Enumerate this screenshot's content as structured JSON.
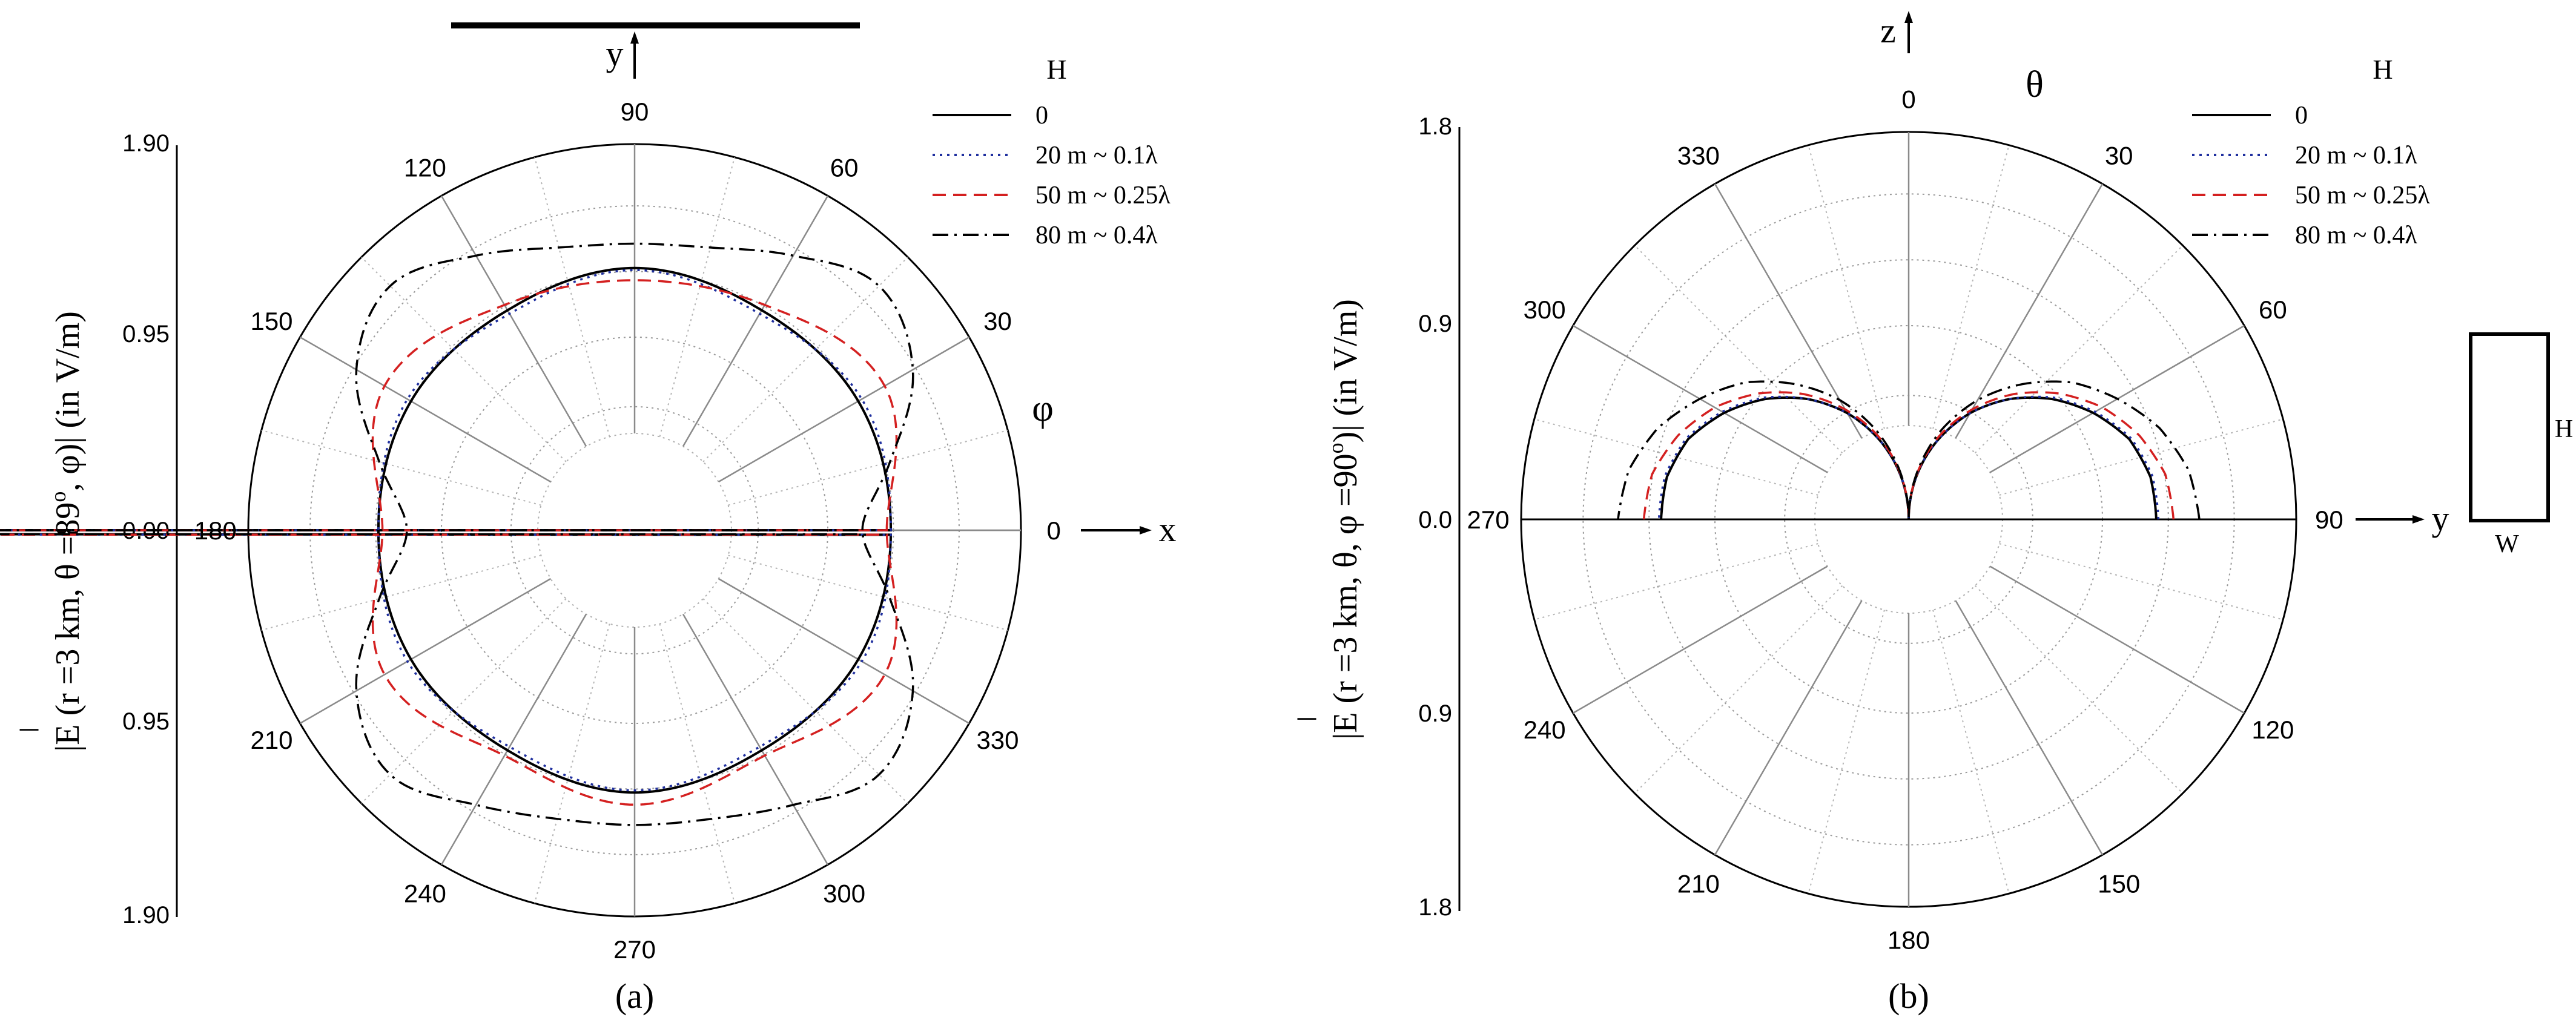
{
  "figure": {
    "caption_a": "(a)",
    "caption_b": "(b)"
  },
  "legend": {
    "title": "H",
    "entries": [
      {
        "label": "0",
        "color": "#000000",
        "dash": "solid"
      },
      {
        "label": "20 m ~ 0.1λ",
        "color": "#1f2f9f",
        "dash": "dot"
      },
      {
        "label": "50 m ~ 0.25λ",
        "color": "#d42020",
        "dash": "dash"
      },
      {
        "label": "80 m ~ 0.4λ",
        "color": "#000000",
        "dash": "dashdot"
      }
    ]
  },
  "chart_data": [
    {
      "type": "polar-line",
      "panel": "a",
      "ylabel_parts": [
        "|E (r =3 km, θ =89",
        "o",
        ", φ)| (in V/m)"
      ],
      "ylabel_bar": "¯",
      "radial_ticks": [
        "1.90",
        "0.95",
        "0.00",
        "0.95",
        "1.90"
      ],
      "radial_range": [
        0,
        1.9
      ],
      "angle_ticks": [
        "0",
        "30",
        "60",
        "90",
        "120",
        "150",
        "180",
        "210",
        "240",
        "270",
        "300",
        "330"
      ],
      "angle_zero": "right",
      "angle_direction": "counterclockwise",
      "angle_label": "φ",
      "axis_x": "x",
      "axis_y": "y",
      "series": [
        {
          "name": "0",
          "x_deg": [
            0,
            30,
            60,
            90,
            120,
            150,
            180,
            210,
            240,
            270,
            300,
            330
          ],
          "r": [
            1.26,
            1.27,
            1.25,
            1.29,
            1.25,
            1.27,
            1.26,
            1.27,
            1.25,
            1.29,
            1.25,
            1.27
          ]
        },
        {
          "name": "20 m ~ 0.1λ",
          "x_deg": [
            0,
            30,
            60,
            90,
            120,
            150,
            180,
            210,
            240,
            270,
            300,
            330
          ],
          "r": [
            1.26,
            1.29,
            1.23,
            1.28,
            1.23,
            1.29,
            1.26,
            1.29,
            1.23,
            1.28,
            1.23,
            1.29
          ]
        },
        {
          "name": "50 m ~ 0.25λ",
          "x_deg": [
            0,
            30,
            60,
            90,
            120,
            150,
            180,
            210,
            240,
            270,
            300,
            330
          ],
          "r": [
            1.24,
            1.42,
            1.28,
            1.23,
            1.28,
            1.42,
            1.24,
            1.42,
            1.28,
            1.35,
            1.28,
            1.42
          ]
        },
        {
          "name": "80 m ~ 0.4λ",
          "x_deg": [
            0,
            15,
            30,
            45,
            60,
            75,
            90,
            105,
            120,
            135,
            150,
            165,
            180,
            195,
            210,
            225,
            240,
            255,
            270,
            285,
            300,
            315,
            330,
            345
          ],
          "r": [
            1.12,
            1.3,
            1.58,
            1.7,
            1.56,
            1.44,
            1.41,
            1.44,
            1.56,
            1.7,
            1.58,
            1.3,
            1.12,
            1.3,
            1.58,
            1.7,
            1.56,
            1.47,
            1.45,
            1.47,
            1.56,
            1.7,
            1.58,
            1.3
          ]
        }
      ]
    },
    {
      "type": "polar-line",
      "panel": "b",
      "ylabel_parts": [
        "|E (r =3 km, θ, φ =90",
        "o",
        ")| (in V/m)"
      ],
      "ylabel_bar": "¯",
      "radial_ticks": [
        "1.8",
        "0.9",
        "0.0",
        "0.9",
        "1.8"
      ],
      "radial_range": [
        0,
        1.8
      ],
      "angle_ticks": [
        "0",
        "30",
        "60",
        "90",
        "120",
        "150",
        "180",
        "210",
        "240",
        "270",
        "300",
        "330"
      ],
      "angle_zero": "top",
      "angle_direction": "clockwise",
      "angle_label": "θ",
      "axis_x": "y",
      "axis_y": "z",
      "inset": {
        "height_label": "H",
        "width_label": "W"
      },
      "series": [
        {
          "name": "0",
          "x_deg": [
            0,
            10,
            20,
            30,
            40,
            50,
            60,
            70,
            80,
            90
          ],
          "r": [
            0.0,
            0.2,
            0.39,
            0.57,
            0.73,
            0.87,
            0.99,
            1.09,
            1.14,
            1.15
          ]
        },
        {
          "name": "20 m ~ 0.1λ",
          "x_deg": [
            0,
            10,
            20,
            30,
            40,
            50,
            60,
            70,
            80,
            90
          ],
          "r": [
            0.0,
            0.2,
            0.39,
            0.57,
            0.73,
            0.88,
            1.0,
            1.1,
            1.15,
            1.16
          ]
        },
        {
          "name": "50 m ~ 0.25λ",
          "x_deg": [
            0,
            10,
            20,
            30,
            40,
            50,
            60,
            70,
            80,
            90
          ],
          "r": [
            0.0,
            0.21,
            0.41,
            0.59,
            0.76,
            0.91,
            1.04,
            1.14,
            1.21,
            1.23
          ]
        },
        {
          "name": "80 m ~ 0.4λ",
          "x_deg": [
            0,
            10,
            20,
            30,
            40,
            50,
            60,
            70,
            80,
            90
          ],
          "r": [
            0.0,
            0.22,
            0.44,
            0.64,
            0.82,
            0.99,
            1.12,
            1.24,
            1.32,
            1.35
          ]
        }
      ]
    }
  ]
}
